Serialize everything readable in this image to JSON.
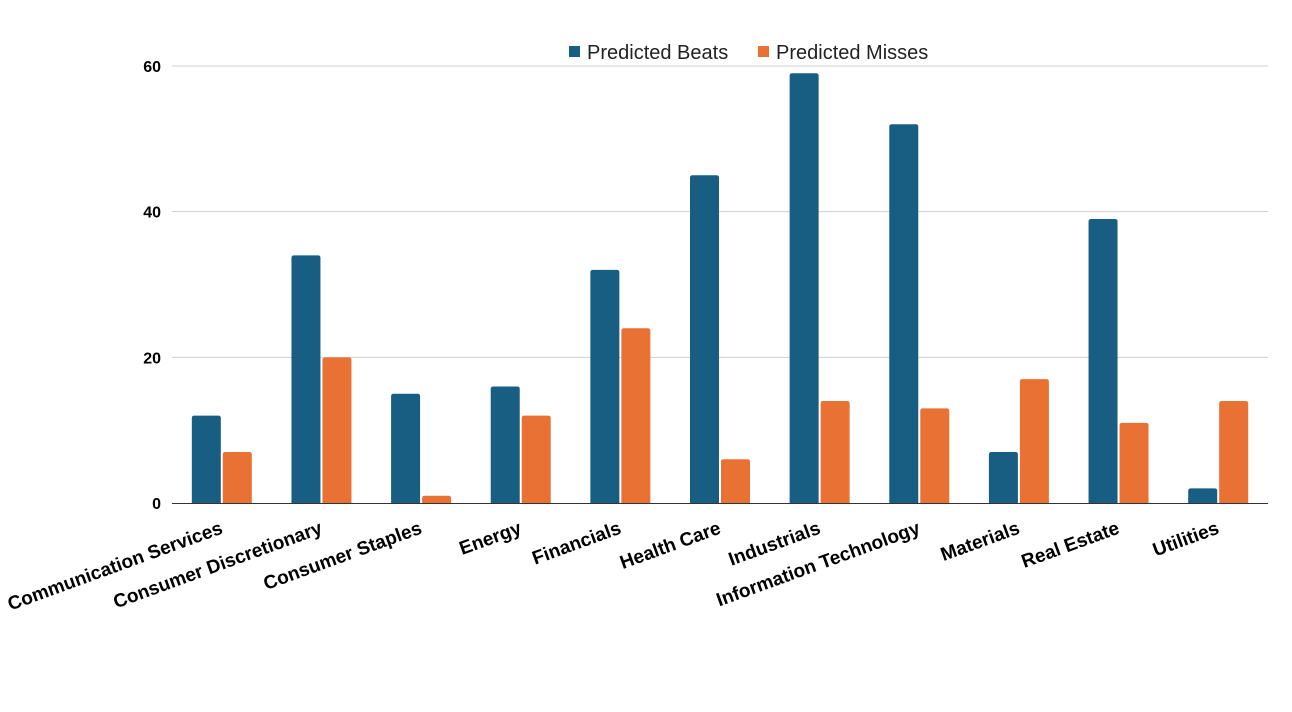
{
  "chart_data": {
    "type": "bar",
    "title": "",
    "xlabel": "",
    "ylabel": "",
    "categories": [
      "Communication Services",
      "Consumer Discretionary",
      "Consumer Staples",
      "Energy",
      "Financials",
      "Health Care",
      "Industrials",
      "Information Technology",
      "Materials",
      "Real Estate",
      "Utilities"
    ],
    "series": [
      {
        "name": "Predicted Beats",
        "color": "#175E82",
        "values": [
          12,
          34,
          15,
          16,
          32,
          45,
          59,
          52,
          7,
          39,
          2
        ]
      },
      {
        "name": "Predicted Misses",
        "color": "#EA7134",
        "values": [
          7,
          20,
          1,
          12,
          24,
          6,
          14,
          13,
          17,
          11,
          14
        ]
      }
    ],
    "ylim": [
      0,
      60
    ],
    "yticks": [
      0,
      20,
      40,
      60
    ],
    "grid": true,
    "legend_position": "top-center"
  }
}
